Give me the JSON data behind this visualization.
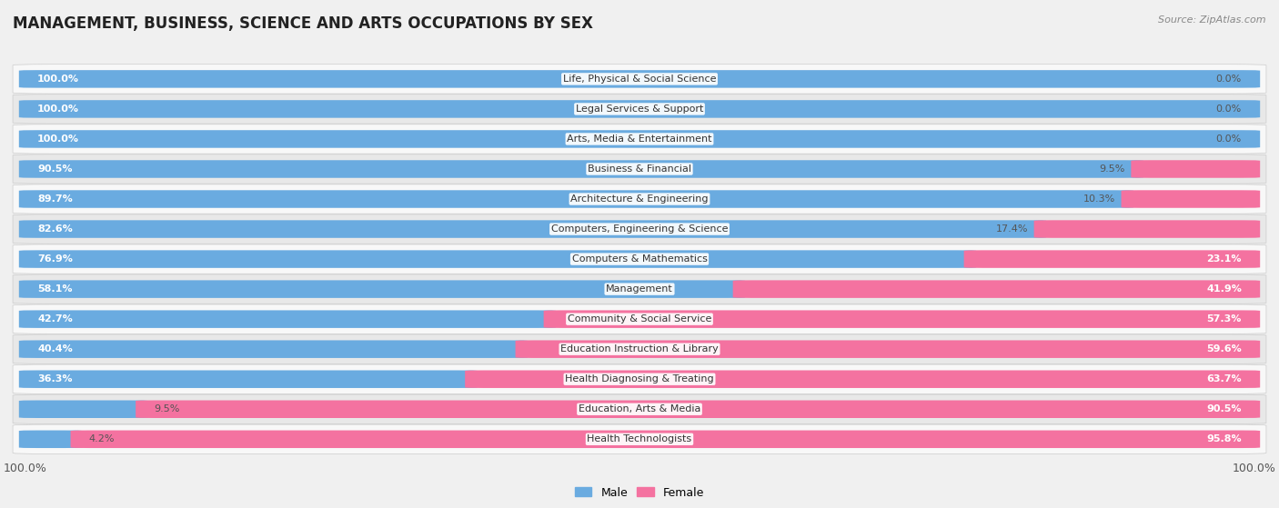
{
  "title": "MANAGEMENT, BUSINESS, SCIENCE AND ARTS OCCUPATIONS BY SEX",
  "source": "Source: ZipAtlas.com",
  "categories": [
    "Life, Physical & Social Science",
    "Legal Services & Support",
    "Arts, Media & Entertainment",
    "Business & Financial",
    "Architecture & Engineering",
    "Computers, Engineering & Science",
    "Computers & Mathematics",
    "Management",
    "Community & Social Service",
    "Education Instruction & Library",
    "Health Diagnosing & Treating",
    "Education, Arts & Media",
    "Health Technologists"
  ],
  "male_pct": [
    100.0,
    100.0,
    100.0,
    90.5,
    89.7,
    82.6,
    76.9,
    58.1,
    42.7,
    40.4,
    36.3,
    9.5,
    4.2
  ],
  "female_pct": [
    0.0,
    0.0,
    0.0,
    9.5,
    10.3,
    17.4,
    23.1,
    41.9,
    57.3,
    59.6,
    63.7,
    90.5,
    95.8
  ],
  "male_color": "#6aabe0",
  "female_color": "#f472a0",
  "background_color": "#f0f0f0",
  "row_bg_even": "#e8e8e8",
  "row_bg_odd": "#f8f8f8",
  "bar_height": 0.58,
  "legend_male": "Male",
  "legend_female": "Female",
  "inside_label_threshold": 20,
  "label_inside_color_male": "#ffffff",
  "label_inside_color_female": "#ffffff",
  "label_outside_color": "#555555"
}
